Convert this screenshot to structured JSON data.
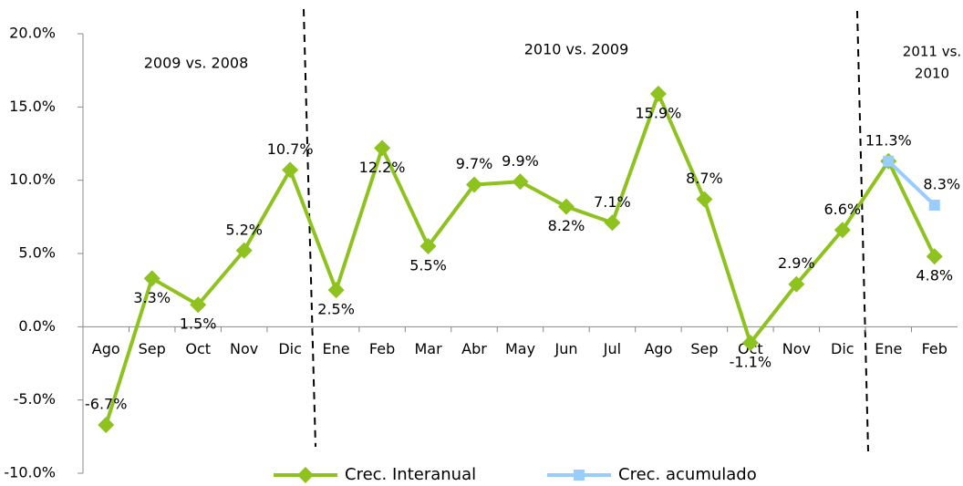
{
  "chart_data": {
    "type": "line",
    "categories": [
      "Ago",
      "Sep",
      "Oct",
      "Nov",
      "Dic",
      "Ene",
      "Feb",
      "Mar",
      "Abr",
      "May",
      "Jun",
      "Jul",
      "Ago",
      "Sep",
      "Oct",
      "Nov",
      "Dic",
      "Ene",
      "Feb"
    ],
    "series": [
      {
        "name": "Crec. Interanual",
        "color": "#8dc21f",
        "values": [
          -6.7,
          3.3,
          1.5,
          5.2,
          10.7,
          2.5,
          12.2,
          5.5,
          9.7,
          9.9,
          8.2,
          7.1,
          15.9,
          8.7,
          -1.1,
          2.9,
          6.6,
          11.3,
          4.8
        ],
        "value_labels": [
          "-6.7%",
          "3.3%",
          "1.5%",
          "5.2%",
          "10.7%",
          "2.5%",
          "12.2%",
          "5.5%",
          "9.7%",
          "9.9%",
          "8.2%",
          "7.1%",
          "15.9%",
          "8.7%",
          "-1.1%",
          "2.9%",
          "6.6%",
          "11.3%",
          "4.8%"
        ]
      },
      {
        "name": "Crec. acumulado",
        "color": "#99ccff",
        "values": [
          null,
          null,
          null,
          null,
          null,
          null,
          null,
          null,
          null,
          null,
          null,
          null,
          null,
          null,
          null,
          null,
          null,
          11.3,
          8.3
        ],
        "value_labels": [
          null,
          null,
          null,
          null,
          null,
          null,
          null,
          null,
          null,
          null,
          null,
          null,
          null,
          null,
          null,
          null,
          null,
          null,
          "8.3%"
        ]
      }
    ],
    "ylim": [
      -10,
      20
    ],
    "yticks": [
      {
        "value": -10,
        "label": "-10.0%"
      },
      {
        "value": -5,
        "label": "-5.0%"
      },
      {
        "value": 0,
        "label": "0.0%"
      },
      {
        "value": 5,
        "label": "5.0%"
      },
      {
        "value": 10,
        "label": "10.0%"
      },
      {
        "value": 15,
        "label": "15.0%"
      },
      {
        "value": 20,
        "label": "20.0%"
      }
    ],
    "annotations": [
      [
        "2009 vs. 2008"
      ],
      [
        "2010 vs. 2009"
      ],
      [
        "2011 vs.",
        "2010"
      ]
    ],
    "legend": "bottom"
  }
}
